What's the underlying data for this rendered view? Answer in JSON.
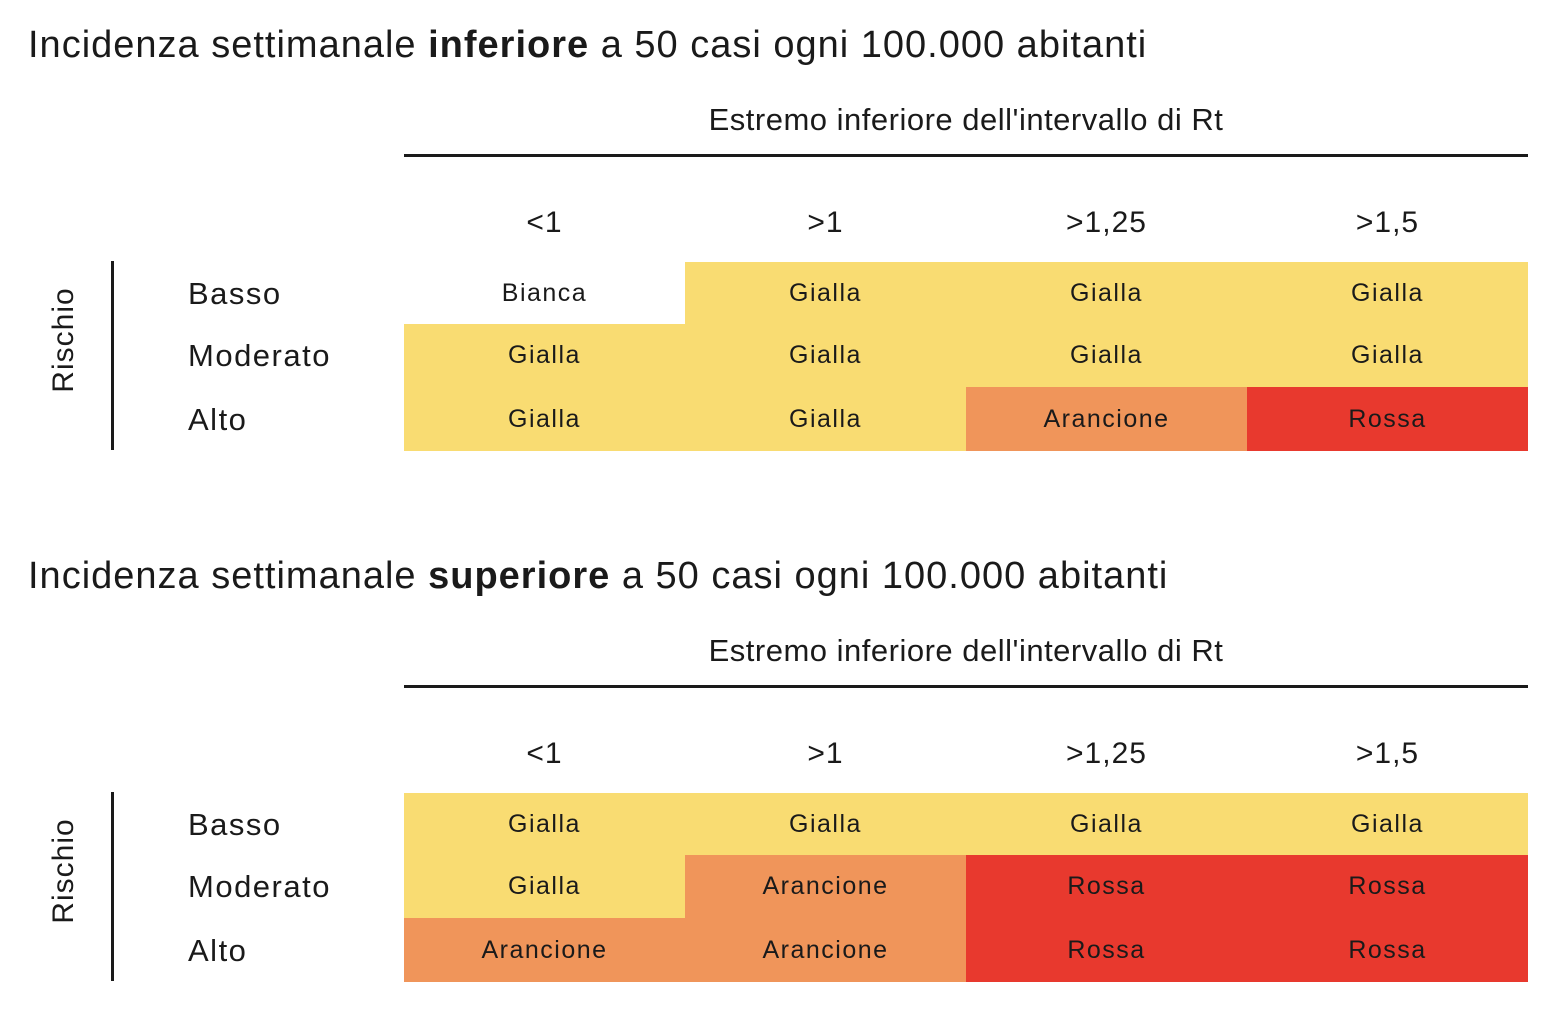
{
  "chart_data": [
    {
      "type": "table",
      "title_pre": "Incidenza settimanale ",
      "title_bold": "inferiore",
      "title_post": " a 50 casi ogni 100.000 abitanti",
      "column_axis_title": "Estremo inferiore dell'intervallo di Rt",
      "row_axis_title": "Rischio",
      "columns": [
        "<1",
        ">1",
        ">1,25",
        ">1,5"
      ],
      "rows": [
        "Basso",
        "Moderato",
        "Alto"
      ],
      "cells": [
        [
          "Bianca",
          "Gialla",
          "Gialla",
          "Gialla"
        ],
        [
          "Gialla",
          "Gialla",
          "Gialla",
          "Gialla"
        ],
        [
          "Gialla",
          "Gialla",
          "Arancione",
          "Rossa"
        ]
      ]
    },
    {
      "type": "table",
      "title_pre": "Incidenza settimanale ",
      "title_bold": "superiore",
      "title_post": " a 50 casi ogni 100.000 abitanti",
      "column_axis_title": "Estremo inferiore dell'intervallo di Rt",
      "row_axis_title": "Rischio",
      "columns": [
        "<1",
        ">1",
        ">1,25",
        ">1,5"
      ],
      "rows": [
        "Basso",
        "Moderato",
        "Alto"
      ],
      "cells": [
        [
          "Gialla",
          "Gialla",
          "Gialla",
          "Gialla"
        ],
        [
          "Gialla",
          "Arancione",
          "Rossa",
          "Rossa"
        ],
        [
          "Arancione",
          "Arancione",
          "Rossa",
          "Rossa"
        ]
      ]
    }
  ],
  "colors": {
    "Bianca": "#ffffff",
    "Gialla": "#f9dc72",
    "Arancione": "#f0955a",
    "Rossa": "#e8392e"
  }
}
